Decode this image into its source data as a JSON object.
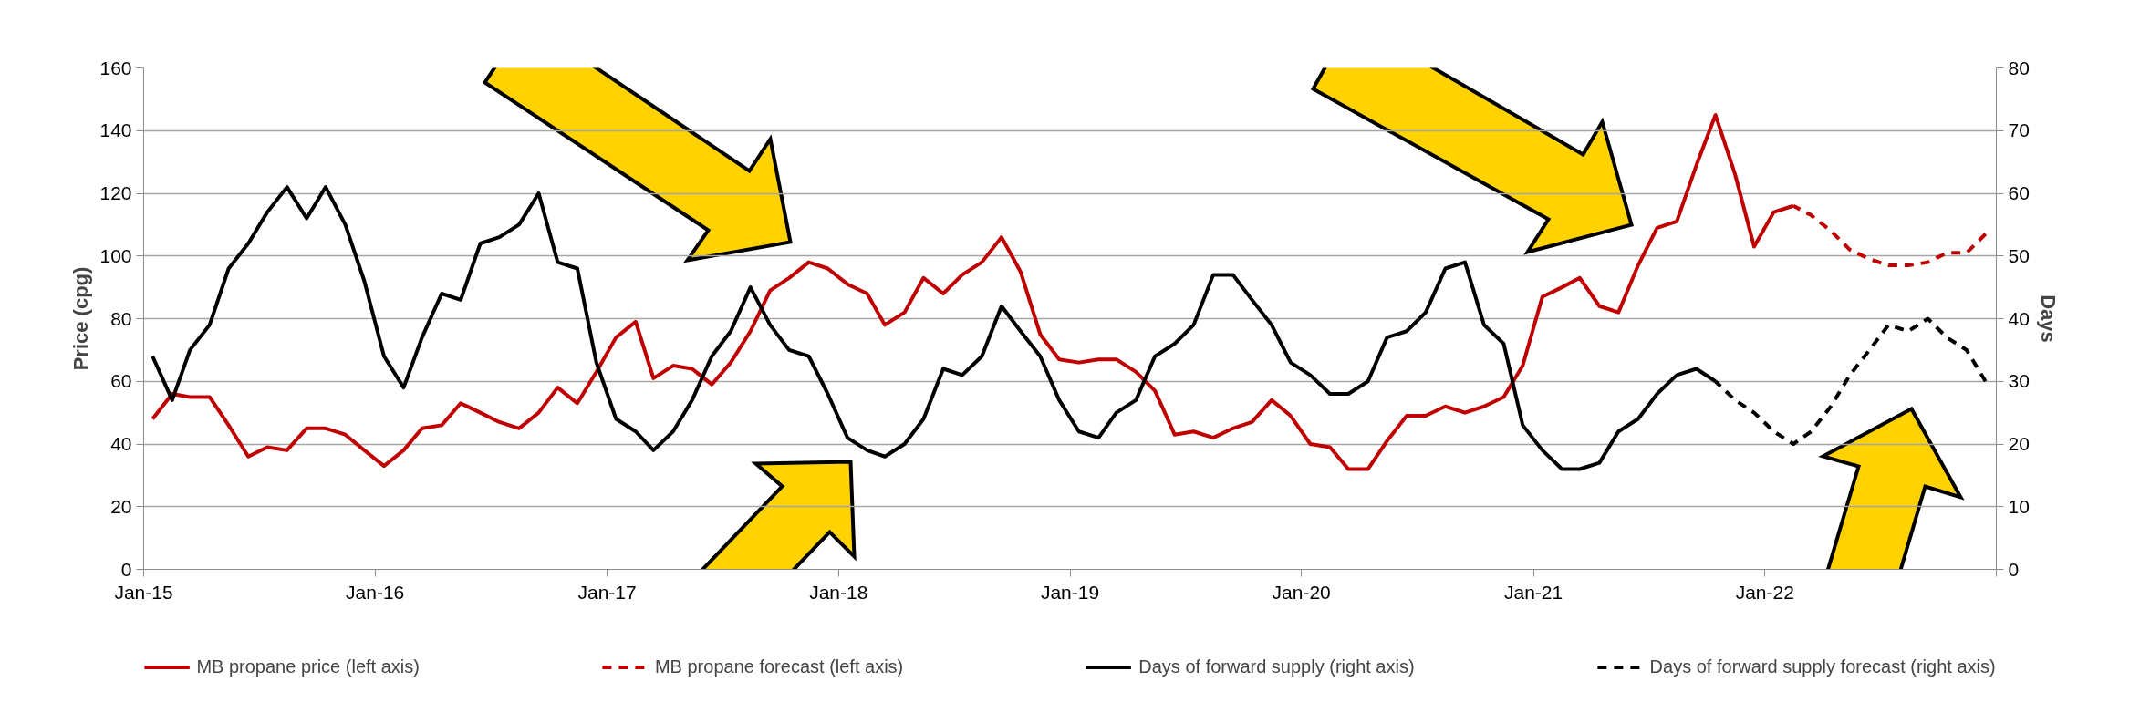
{
  "chart_data": {
    "type": "line",
    "ylabel": "Price (cpg)",
    "y2label": "Days",
    "ylim": [
      0,
      160
    ],
    "yticks": [
      0,
      20,
      40,
      60,
      80,
      100,
      120,
      140,
      160
    ],
    "y2lim": [
      0,
      80
    ],
    "y2ticks": [
      0,
      10,
      20,
      30,
      40,
      50,
      60,
      70,
      80
    ],
    "xlim": [
      "2015-01-01",
      "2023-01-01"
    ],
    "xticks": [
      {
        "value": "2015-01-01",
        "label": "Jan-15"
      },
      {
        "value": "2016-01-01",
        "label": "Jan-16"
      },
      {
        "value": "2017-01-01",
        "label": "Jan-17"
      },
      {
        "value": "2018-01-01",
        "label": "Jan-18"
      },
      {
        "value": "2019-01-01",
        "label": "Jan-19"
      },
      {
        "value": "2020-01-01",
        "label": "Jan-20"
      },
      {
        "value": "2021-01-01",
        "label": "Jan-21"
      },
      {
        "value": "2022-01-01",
        "label": "Jan-22"
      },
      {
        "value": "2023-01-01",
        "label": null
      }
    ],
    "grid": "y",
    "legend": "bottom",
    "marker": "none",
    "x": [
      "2015-01-15",
      "2015-02-15",
      "2015-03-15",
      "2015-04-15",
      "2015-05-15",
      "2015-06-15",
      "2015-07-15",
      "2015-08-15",
      "2015-09-15",
      "2015-10-15",
      "2015-11-15",
      "2015-12-15",
      "2016-01-15",
      "2016-02-15",
      "2016-03-15",
      "2016-04-15",
      "2016-05-15",
      "2016-06-15",
      "2016-07-15",
      "2016-08-15",
      "2016-09-15",
      "2016-10-15",
      "2016-11-15",
      "2016-12-15",
      "2017-01-15",
      "2017-02-15",
      "2017-03-15",
      "2017-04-15",
      "2017-05-15",
      "2017-06-15",
      "2017-07-15",
      "2017-08-15",
      "2017-09-15",
      "2017-10-15",
      "2017-11-15",
      "2017-12-15",
      "2018-01-15",
      "2018-02-15",
      "2018-03-15",
      "2018-04-15",
      "2018-05-15",
      "2018-06-15",
      "2018-07-15",
      "2018-08-15",
      "2018-09-15",
      "2018-10-15",
      "2018-11-15",
      "2018-12-15",
      "2019-01-15",
      "2019-02-15",
      "2019-03-15",
      "2019-04-15",
      "2019-05-15",
      "2019-06-15",
      "2019-07-15",
      "2019-08-15",
      "2019-09-15",
      "2019-10-15",
      "2019-11-15",
      "2019-12-15",
      "2020-01-15",
      "2020-02-15",
      "2020-03-15",
      "2020-04-15",
      "2020-05-15",
      "2020-06-15",
      "2020-07-15",
      "2020-08-15",
      "2020-09-15",
      "2020-10-15",
      "2020-11-15",
      "2020-12-15",
      "2021-01-15",
      "2021-02-15",
      "2021-03-15",
      "2021-04-15",
      "2021-05-15",
      "2021-06-15",
      "2021-07-15",
      "2021-08-15",
      "2021-09-15",
      "2021-10-15",
      "2021-11-15",
      "2021-12-15",
      "2022-01-15",
      "2022-02-15",
      "2022-03-15",
      "2022-04-15",
      "2022-05-15",
      "2022-06-15",
      "2022-07-15",
      "2022-08-15",
      "2022-09-15",
      "2022-10-15",
      "2022-11-15",
      "2022-12-15"
    ],
    "series": [
      {
        "name": "MB propane price (left axis)",
        "color": "#c00000",
        "line_style": "solid",
        "values": [
          48,
          56,
          55,
          55,
          46,
          36,
          39,
          38,
          45,
          45,
          43,
          38,
          33,
          38,
          45,
          46,
          53,
          50,
          47,
          45,
          50,
          58,
          53,
          63,
          74,
          79,
          61,
          65,
          64,
          59,
          66,
          76,
          89,
          93,
          98,
          96,
          91,
          88,
          78,
          82,
          93,
          88,
          94,
          98,
          106,
          95,
          75,
          67,
          66,
          67,
          67,
          63,
          57,
          43,
          44,
          42,
          45,
          47,
          54,
          49,
          40,
          39,
          32,
          32,
          41,
          49,
          49,
          52,
          50,
          52,
          55,
          65,
          87,
          90,
          93,
          84,
          82,
          97,
          109,
          111,
          129,
          145,
          126,
          103,
          114,
          116,
          null,
          null,
          null,
          null,
          null,
          null,
          null,
          null,
          null,
          null
        ]
      },
      {
        "name": "MB propane forecast (left axis)",
        "color": "#c00000",
        "line_style": "dashed",
        "values": [
          null,
          null,
          null,
          null,
          null,
          null,
          null,
          null,
          null,
          null,
          null,
          null,
          null,
          null,
          null,
          null,
          null,
          null,
          null,
          null,
          null,
          null,
          null,
          null,
          null,
          null,
          null,
          null,
          null,
          null,
          null,
          null,
          null,
          null,
          null,
          null,
          null,
          null,
          null,
          null,
          null,
          null,
          null,
          null,
          null,
          null,
          null,
          null,
          null,
          null,
          null,
          null,
          null,
          null,
          null,
          null,
          null,
          null,
          null,
          null,
          null,
          null,
          null,
          null,
          null,
          null,
          null,
          null,
          null,
          null,
          null,
          null,
          null,
          null,
          null,
          null,
          null,
          null,
          null,
          null,
          null,
          null,
          null,
          null,
          null,
          116,
          113,
          108,
          102,
          99,
          97,
          97,
          98,
          101,
          101,
          107
        ]
      },
      {
        "name": "Days of forward supply (right axis)",
        "color": "#000000",
        "line_style": "solid",
        "axis": "y2",
        "values": [
          34,
          27,
          35,
          39,
          48,
          52,
          57,
          61,
          56,
          61,
          55,
          46,
          34,
          29,
          37,
          44,
          43,
          52,
          53,
          55,
          60,
          49,
          48,
          33,
          24,
          22,
          19,
          22,
          27,
          34,
          38,
          45,
          39,
          35,
          34,
          28,
          21,
          19,
          18,
          20,
          24,
          32,
          31,
          34,
          42,
          38,
          34,
          27,
          22,
          21,
          25,
          27,
          34,
          36,
          39,
          47,
          47,
          43,
          39,
          33,
          31,
          28,
          28,
          30,
          37,
          38,
          41,
          48,
          49,
          39,
          36,
          23,
          19,
          16,
          16,
          17,
          22,
          24,
          28,
          31,
          32,
          30,
          null,
          null,
          null,
          null,
          null,
          null,
          null,
          null,
          null,
          null,
          null,
          null,
          null,
          null
        ]
      },
      {
        "name": "Days of forward supply forecast (right axis)",
        "color": "#000000",
        "line_style": "dashed",
        "axis": "y2",
        "values": [
          null,
          null,
          null,
          null,
          null,
          null,
          null,
          null,
          null,
          null,
          null,
          null,
          null,
          null,
          null,
          null,
          null,
          null,
          null,
          null,
          null,
          null,
          null,
          null,
          null,
          null,
          null,
          null,
          null,
          null,
          null,
          null,
          null,
          null,
          null,
          null,
          null,
          null,
          null,
          null,
          null,
          null,
          null,
          null,
          null,
          null,
          null,
          null,
          null,
          null,
          null,
          null,
          null,
          null,
          null,
          null,
          null,
          null,
          null,
          null,
          null,
          null,
          null,
          null,
          null,
          null,
          null,
          null,
          null,
          null,
          null,
          null,
          null,
          null,
          null,
          null,
          null,
          null,
          null,
          null,
          null,
          30,
          27,
          25,
          22,
          20,
          22,
          26,
          31,
          35,
          39,
          38,
          40,
          37,
          35,
          30
        ]
      }
    ]
  }
}
